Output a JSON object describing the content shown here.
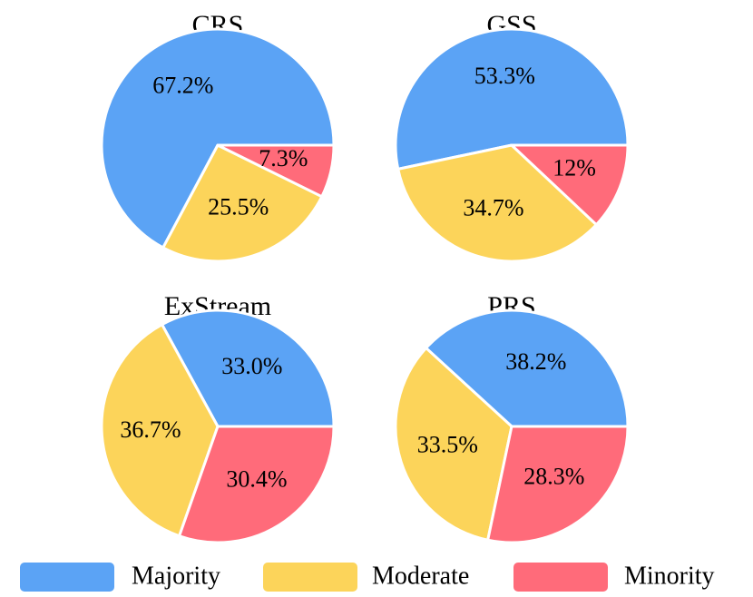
{
  "chart_data": [
    {
      "type": "pie",
      "title": "CRS",
      "categories": [
        "Majority",
        "Moderate",
        "Minority"
      ],
      "values": [
        67.2,
        25.5,
        7.3
      ],
      "labels": [
        "67.2%",
        "25.5%",
        "7.3%"
      ]
    },
    {
      "type": "pie",
      "title": "GSS",
      "categories": [
        "Majority",
        "Moderate",
        "Minority"
      ],
      "values": [
        53.3,
        34.7,
        12.0
      ],
      "labels": [
        "53.3%",
        "34.7%",
        "12%"
      ]
    },
    {
      "type": "pie",
      "title": "ExStream",
      "categories": [
        "Majority",
        "Moderate",
        "Minority"
      ],
      "values": [
        33.0,
        36.7,
        30.4
      ],
      "labels": [
        "33.0%",
        "36.7%",
        "30.4%"
      ]
    },
    {
      "type": "pie",
      "title": "PRS",
      "categories": [
        "Majority",
        "Moderate",
        "Minority"
      ],
      "values": [
        38.2,
        33.5,
        28.3
      ],
      "labels": [
        "38.2%",
        "33.5%",
        "28.3%"
      ]
    }
  ],
  "legend": {
    "position": "bottom",
    "items": [
      {
        "label": "Majority",
        "color": "#5BA3F5"
      },
      {
        "label": "Moderate",
        "color": "#FCD45A"
      },
      {
        "label": "Minority",
        "color": "#FF6B7A"
      }
    ]
  },
  "colors": {
    "Majority": "#5BA3F5",
    "Moderate": "#FCD45A",
    "Minority": "#FF6B7A"
  }
}
